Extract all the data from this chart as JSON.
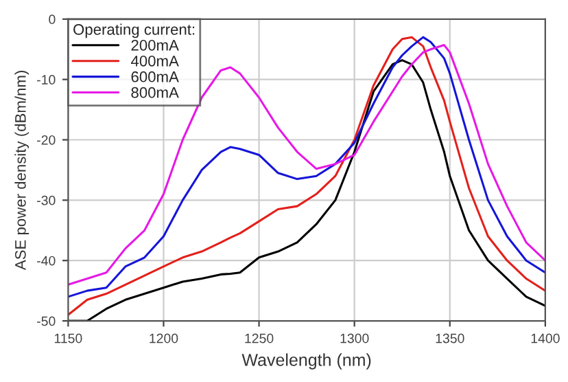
{
  "chart_data": {
    "type": "line",
    "xlabel": "Wavelength (nm)",
    "ylabel": "ASE power density (dBm/nm)",
    "legend_title": "Operating current:",
    "xlim": [
      1150,
      1400
    ],
    "xticks": [
      1150,
      1200,
      1250,
      1300,
      1350,
      1400
    ],
    "ylim": [
      -50,
      0
    ],
    "yticks": [
      -50,
      -40,
      -30,
      -20,
      -10,
      0
    ],
    "grid": true,
    "legend": "top left",
    "x": [
      1150,
      1160,
      1170,
      1180,
      1190,
      1200,
      1210,
      1220,
      1230,
      1235,
      1240,
      1250,
      1260,
      1270,
      1280,
      1290,
      1300,
      1310,
      1320,
      1325,
      1330,
      1336,
      1340,
      1347,
      1350,
      1360,
      1370,
      1380,
      1390,
      1400
    ],
    "series": [
      {
        "name": "200mA",
        "color": "#000000",
        "values": [
          -50,
          -50,
          -48,
          -46.5,
          -45.5,
          -44.5,
          -43.5,
          -43,
          -42.3,
          -42.2,
          -42,
          -39.5,
          -38.5,
          -37,
          -34,
          -30,
          -22,
          -12,
          -7.5,
          -6.8,
          -7.5,
          -10.5,
          -15,
          -22,
          -26,
          -35,
          -40,
          -43,
          -46,
          -47.5
        ]
      },
      {
        "name": "400mA",
        "color": "#e3201b",
        "values": [
          -49,
          -46.5,
          -45.5,
          -44,
          -42.5,
          -41,
          -39.5,
          -38.5,
          -37,
          -36.2,
          -35.5,
          -33.5,
          -31.5,
          -31,
          -29,
          -26,
          -20,
          -11,
          -5,
          -3.3,
          -3,
          -4.5,
          -8,
          -13.5,
          -17,
          -28,
          -36,
          -40,
          -43,
          -45
        ]
      },
      {
        "name": "600mA",
        "color": "#1515d9",
        "values": [
          -46,
          -45,
          -44.5,
          -41,
          -39.5,
          -36,
          -30,
          -25,
          -22,
          -21.2,
          -21.5,
          -22.5,
          -25.5,
          -26.5,
          -26,
          -24,
          -20.5,
          -14,
          -8,
          -6,
          -4.5,
          -3,
          -3.8,
          -6.5,
          -9,
          -20,
          -30,
          -36,
          -40,
          -42
        ]
      },
      {
        "name": "800mA",
        "color": "#e619e6",
        "values": [
          -44,
          -43,
          -42,
          -38,
          -35,
          -29,
          -20,
          -13,
          -8.5,
          -8,
          -9,
          -13,
          -18,
          -22,
          -24.8,
          -24,
          -22.5,
          -17,
          -12,
          -9.5,
          -7.5,
          -5.5,
          -5,
          -4.3,
          -5.5,
          -14,
          -24,
          -31,
          -37,
          -40
        ]
      }
    ]
  }
}
